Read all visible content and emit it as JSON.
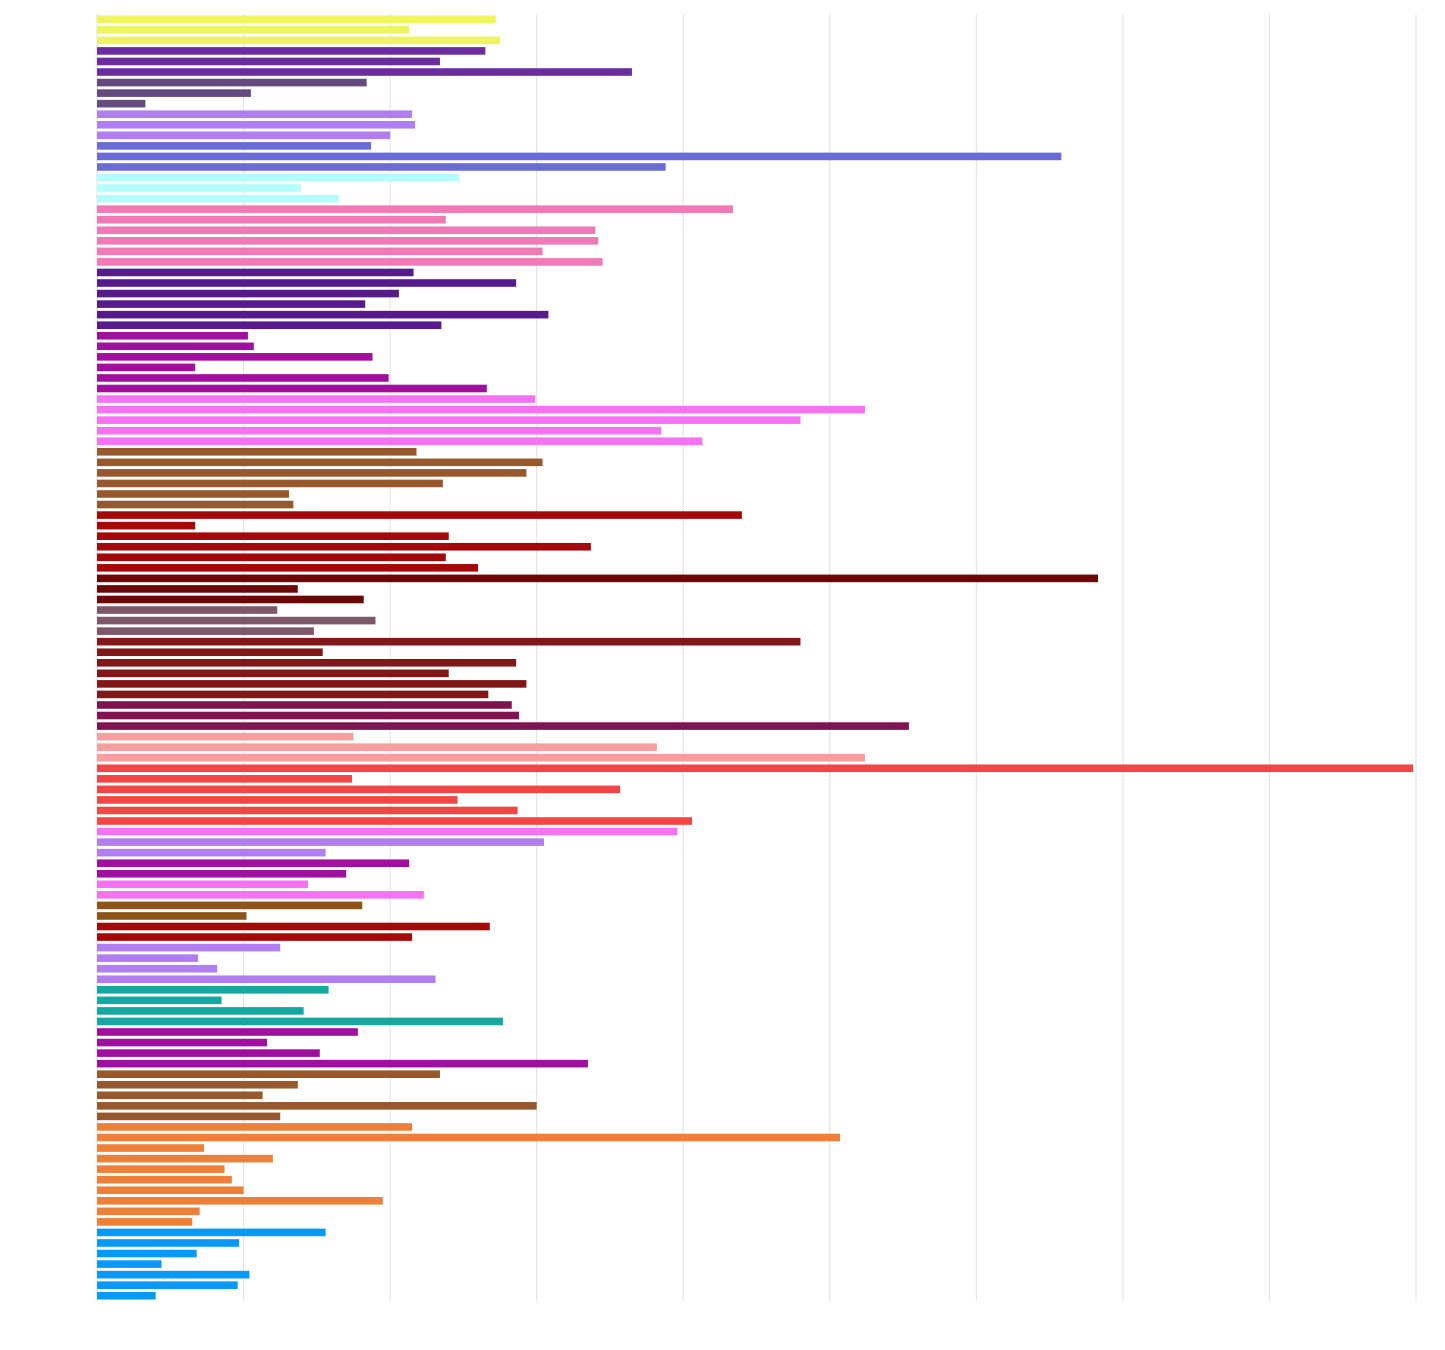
{
  "chart_data": {
    "type": "bar",
    "orientation": "horizontal",
    "title": "",
    "xlabel": "",
    "ylabel": "",
    "xlim": [
      0,
      9
    ],
    "grid": true,
    "legend": "none",
    "tick_labels_visible": false,
    "bars": [
      {
        "value": 2.72,
        "color": "#eef560"
      },
      {
        "value": 2.13,
        "color": "#eef560"
      },
      {
        "value": 2.75,
        "color": "#eef560"
      },
      {
        "value": 2.65,
        "color": "#6b2d9e"
      },
      {
        "value": 2.34,
        "color": "#6b2d9e"
      },
      {
        "value": 3.65,
        "color": "#6b2d9e"
      },
      {
        "value": 1.84,
        "color": "#654a80"
      },
      {
        "value": 1.05,
        "color": "#654a80"
      },
      {
        "value": 0.33,
        "color": "#654a80"
      },
      {
        "value": 2.15,
        "color": "#b07ef0"
      },
      {
        "value": 2.17,
        "color": "#b07ef0"
      },
      {
        "value": 2.0,
        "color": "#b07ef0"
      },
      {
        "value": 1.87,
        "color": "#6b6bd8"
      },
      {
        "value": 6.58,
        "color": "#6b6bd8"
      },
      {
        "value": 3.88,
        "color": "#6b6bd8"
      },
      {
        "value": 2.47,
        "color": "#b3fcfc"
      },
      {
        "value": 1.39,
        "color": "#b3fcfc"
      },
      {
        "value": 1.65,
        "color": "#b3fcfc"
      },
      {
        "value": 4.34,
        "color": "#ef7ab6"
      },
      {
        "value": 2.38,
        "color": "#ef7ab6"
      },
      {
        "value": 3.4,
        "color": "#ef7ab6"
      },
      {
        "value": 3.42,
        "color": "#ef7ab6"
      },
      {
        "value": 3.04,
        "color": "#ef7ab6"
      },
      {
        "value": 3.45,
        "color": "#ef7ab6"
      },
      {
        "value": 2.16,
        "color": "#561a8c"
      },
      {
        "value": 2.86,
        "color": "#561a8c"
      },
      {
        "value": 2.06,
        "color": "#561a8c"
      },
      {
        "value": 1.83,
        "color": "#561a8c"
      },
      {
        "value": 3.08,
        "color": "#561a8c"
      },
      {
        "value": 2.35,
        "color": "#561a8c"
      },
      {
        "value": 1.03,
        "color": "#a0109e"
      },
      {
        "value": 1.07,
        "color": "#a0109e"
      },
      {
        "value": 1.88,
        "color": "#a0109e"
      },
      {
        "value": 0.67,
        "color": "#a0109e"
      },
      {
        "value": 1.99,
        "color": "#a0109e"
      },
      {
        "value": 2.66,
        "color": "#a0109e"
      },
      {
        "value": 2.99,
        "color": "#f572f3"
      },
      {
        "value": 5.24,
        "color": "#f572f3"
      },
      {
        "value": 4.8,
        "color": "#f572f3"
      },
      {
        "value": 3.85,
        "color": "#f572f3"
      },
      {
        "value": 4.13,
        "color": "#f572f3"
      },
      {
        "value": 2.18,
        "color": "#96582c"
      },
      {
        "value": 3.04,
        "color": "#96582c"
      },
      {
        "value": 2.93,
        "color": "#96582c"
      },
      {
        "value": 2.36,
        "color": "#96582c"
      },
      {
        "value": 1.31,
        "color": "#96582c"
      },
      {
        "value": 1.34,
        "color": "#96582c"
      },
      {
        "value": 4.4,
        "color": "#a50808"
      },
      {
        "value": 0.67,
        "color": "#a50808"
      },
      {
        "value": 2.4,
        "color": "#a50808"
      },
      {
        "value": 3.37,
        "color": "#a50808"
      },
      {
        "value": 2.38,
        "color": "#a50808"
      },
      {
        "value": 2.6,
        "color": "#a50808"
      },
      {
        "value": 6.83,
        "color": "#6a0808"
      },
      {
        "value": 1.37,
        "color": "#6a0808"
      },
      {
        "value": 1.82,
        "color": "#6a0808"
      },
      {
        "value": 1.23,
        "color": "#7e5868"
      },
      {
        "value": 1.9,
        "color": "#7e5868"
      },
      {
        "value": 1.48,
        "color": "#7e5868"
      },
      {
        "value": 4.8,
        "color": "#801818"
      },
      {
        "value": 1.54,
        "color": "#801818"
      },
      {
        "value": 2.86,
        "color": "#801818"
      },
      {
        "value": 2.4,
        "color": "#801818"
      },
      {
        "value": 2.93,
        "color": "#801818"
      },
      {
        "value": 2.67,
        "color": "#801818"
      },
      {
        "value": 2.83,
        "color": "#801450"
      },
      {
        "value": 2.88,
        "color": "#801450"
      },
      {
        "value": 5.54,
        "color": "#801450"
      },
      {
        "value": 1.75,
        "color": "#f79e9e"
      },
      {
        "value": 3.82,
        "color": "#f79e9e"
      },
      {
        "value": 5.24,
        "color": "#f79e9e"
      },
      {
        "value": 8.98,
        "color": "#f24545"
      },
      {
        "value": 1.74,
        "color": "#f24545"
      },
      {
        "value": 3.57,
        "color": "#f24545"
      },
      {
        "value": 2.46,
        "color": "#f24545"
      },
      {
        "value": 2.87,
        "color": "#f24545"
      },
      {
        "value": 4.06,
        "color": "#f24545"
      },
      {
        "value": 3.96,
        "color": "#f572f3"
      },
      {
        "value": 3.05,
        "color": "#b07ef0"
      },
      {
        "value": 1.56,
        "color": "#b07ef0"
      },
      {
        "value": 2.13,
        "color": "#a0109e"
      },
      {
        "value": 1.7,
        "color": "#a0109e"
      },
      {
        "value": 1.44,
        "color": "#f572f3"
      },
      {
        "value": 2.23,
        "color": "#f572f3"
      },
      {
        "value": 1.81,
        "color": "#8c5418"
      },
      {
        "value": 1.02,
        "color": "#8c5418"
      },
      {
        "value": 2.68,
        "color": "#a50808"
      },
      {
        "value": 2.15,
        "color": "#a50808"
      },
      {
        "value": 1.25,
        "color": "#b07ef0"
      },
      {
        "value": 0.69,
        "color": "#b07ef0"
      },
      {
        "value": 0.82,
        "color": "#b07ef0"
      },
      {
        "value": 2.31,
        "color": "#b07ef0"
      },
      {
        "value": 1.58,
        "color": "#14a8a0"
      },
      {
        "value": 0.85,
        "color": "#14a8a0"
      },
      {
        "value": 1.41,
        "color": "#14a8a0"
      },
      {
        "value": 2.77,
        "color": "#14a8a0"
      },
      {
        "value": 1.78,
        "color": "#a0109e"
      },
      {
        "value": 1.16,
        "color": "#a0109e"
      },
      {
        "value": 1.52,
        "color": "#a0109e"
      },
      {
        "value": 3.35,
        "color": "#a0109e"
      },
      {
        "value": 2.34,
        "color": "#96582c"
      },
      {
        "value": 1.37,
        "color": "#96582c"
      },
      {
        "value": 1.13,
        "color": "#96582c"
      },
      {
        "value": 3.0,
        "color": "#96582c"
      },
      {
        "value": 1.25,
        "color": "#96582c"
      },
      {
        "value": 2.15,
        "color": "#ec8038"
      },
      {
        "value": 5.07,
        "color": "#ec8038"
      },
      {
        "value": 0.73,
        "color": "#ec8038"
      },
      {
        "value": 1.2,
        "color": "#ec8038"
      },
      {
        "value": 0.87,
        "color": "#ec8038"
      },
      {
        "value": 0.92,
        "color": "#ec8038"
      },
      {
        "value": 1.0,
        "color": "#ec8038"
      },
      {
        "value": 1.95,
        "color": "#ec8038"
      },
      {
        "value": 0.7,
        "color": "#ec8038"
      },
      {
        "value": 0.65,
        "color": "#ec8038"
      },
      {
        "value": 1.56,
        "color": "#0898f5"
      },
      {
        "value": 0.97,
        "color": "#0898f5"
      },
      {
        "value": 0.68,
        "color": "#0898f5"
      },
      {
        "value": 0.44,
        "color": "#0898f5"
      },
      {
        "value": 1.04,
        "color": "#0898f5"
      },
      {
        "value": 0.96,
        "color": "#0898f5"
      },
      {
        "value": 0.4,
        "color": "#0898f5"
      }
    ]
  }
}
